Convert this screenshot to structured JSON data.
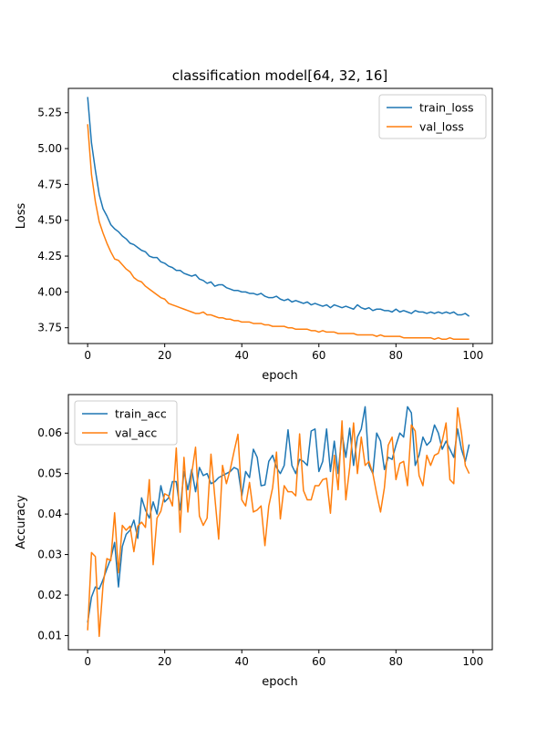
{
  "figure": {},
  "chart_data": [
    {
      "type": "line",
      "title": "classification model[64, 32, 16]",
      "xlabel": "epoch",
      "ylabel": "Loss",
      "xlim": [
        -5,
        105
      ],
      "ylim": [
        3.64,
        5.42
      ],
      "xticks": [
        0,
        20,
        40,
        60,
        80,
        100
      ],
      "yticks": [
        3.75,
        4.0,
        4.25,
        4.5,
        4.75,
        5.0,
        5.25
      ],
      "ytick_labels": [
        "3.75",
        "4.00",
        "4.25",
        "4.50",
        "4.75",
        "5.00",
        "5.25"
      ],
      "legend_position": "top-right",
      "series": [
        {
          "name": "train_loss",
          "color": "#1f77b4",
          "values": [
            5.36,
            5.04,
            4.85,
            4.68,
            4.58,
            4.53,
            4.47,
            4.44,
            4.42,
            4.39,
            4.37,
            4.34,
            4.33,
            4.31,
            4.29,
            4.28,
            4.25,
            4.24,
            4.24,
            4.21,
            4.2,
            4.18,
            4.17,
            4.15,
            4.15,
            4.13,
            4.12,
            4.11,
            4.12,
            4.09,
            4.08,
            4.06,
            4.07,
            4.04,
            4.05,
            4.05,
            4.03,
            4.02,
            4.01,
            4.01,
            4.0,
            4.0,
            3.99,
            3.99,
            3.98,
            3.99,
            3.97,
            3.96,
            3.96,
            3.97,
            3.95,
            3.94,
            3.95,
            3.93,
            3.94,
            3.93,
            3.92,
            3.93,
            3.91,
            3.92,
            3.91,
            3.9,
            3.91,
            3.89,
            3.91,
            3.9,
            3.89,
            3.9,
            3.89,
            3.88,
            3.91,
            3.89,
            3.88,
            3.89,
            3.87,
            3.88,
            3.88,
            3.87,
            3.87,
            3.86,
            3.88,
            3.86,
            3.87,
            3.86,
            3.85,
            3.87,
            3.86,
            3.86,
            3.85,
            3.86,
            3.85,
            3.86,
            3.85,
            3.86,
            3.85,
            3.86,
            3.84,
            3.84,
            3.85,
            3.83
          ]
        },
        {
          "name": "val_loss",
          "color": "#ff7f0e",
          "values": [
            5.17,
            4.82,
            4.63,
            4.49,
            4.41,
            4.34,
            4.28,
            4.23,
            4.22,
            4.19,
            4.16,
            4.14,
            4.1,
            4.08,
            4.07,
            4.04,
            4.02,
            4.0,
            3.98,
            3.96,
            3.95,
            3.92,
            3.91,
            3.9,
            3.89,
            3.88,
            3.87,
            3.86,
            3.85,
            3.85,
            3.86,
            3.84,
            3.84,
            3.83,
            3.82,
            3.82,
            3.81,
            3.81,
            3.8,
            3.8,
            3.79,
            3.79,
            3.79,
            3.78,
            3.78,
            3.78,
            3.77,
            3.77,
            3.76,
            3.76,
            3.76,
            3.76,
            3.75,
            3.75,
            3.74,
            3.74,
            3.74,
            3.74,
            3.73,
            3.73,
            3.72,
            3.73,
            3.72,
            3.72,
            3.72,
            3.71,
            3.71,
            3.71,
            3.71,
            3.71,
            3.7,
            3.7,
            3.7,
            3.7,
            3.7,
            3.69,
            3.7,
            3.69,
            3.69,
            3.69,
            3.69,
            3.69,
            3.68,
            3.68,
            3.68,
            3.68,
            3.68,
            3.68,
            3.68,
            3.68,
            3.67,
            3.68,
            3.67,
            3.67,
            3.68,
            3.67,
            3.67,
            3.67,
            3.67,
            3.67
          ]
        }
      ]
    },
    {
      "type": "line",
      "title": "",
      "xlabel": "epoch",
      "ylabel": "Accuracy",
      "xlim": [
        -5,
        105
      ],
      "ylim": [
        0.0065,
        0.0695
      ],
      "xticks": [
        0,
        20,
        40,
        60,
        80,
        100
      ],
      "yticks": [
        0.01,
        0.02,
        0.03,
        0.04,
        0.05,
        0.06
      ],
      "ytick_labels": [
        "0.01",
        "0.02",
        "0.03",
        "0.04",
        "0.05",
        "0.06"
      ],
      "legend_position": "top-left",
      "series": [
        {
          "name": "train_acc",
          "color": "#1f77b4",
          "values": [
            0.0132,
            0.0195,
            0.022,
            0.0215,
            0.0238,
            0.0265,
            0.029,
            0.033,
            0.022,
            0.032,
            0.035,
            0.036,
            0.0385,
            0.034,
            0.044,
            0.041,
            0.039,
            0.043,
            0.04,
            0.047,
            0.043,
            0.044,
            0.048,
            0.048,
            0.041,
            0.0505,
            0.046,
            0.051,
            0.0455,
            0.0515,
            0.0495,
            0.05,
            0.0475,
            0.048,
            0.049,
            0.0495,
            0.05,
            0.0505,
            0.0515,
            0.051,
            0.0445,
            0.0505,
            0.049,
            0.056,
            0.054,
            0.047,
            0.0472,
            0.053,
            0.0545,
            0.0515,
            0.05,
            0.052,
            0.0608,
            0.052,
            0.05,
            0.0535,
            0.053,
            0.052,
            0.0605,
            0.061,
            0.0505,
            0.053,
            0.061,
            0.0505,
            0.058,
            0.05,
            0.06,
            0.054,
            0.0612,
            0.052,
            0.059,
            0.061,
            0.0665,
            0.052,
            0.05,
            0.06,
            0.058,
            0.051,
            0.054,
            0.0535,
            0.057,
            0.06,
            0.059,
            0.0665,
            0.065,
            0.052,
            0.0545,
            0.059,
            0.057,
            0.058,
            0.062,
            0.06,
            0.056,
            0.058,
            0.056,
            0.054,
            0.061,
            0.056,
            0.053,
            0.0572
          ]
        },
        {
          "name": "val_acc",
          "color": "#ff7f0e",
          "values": [
            0.0113,
            0.0305,
            0.0295,
            0.0098,
            0.0225,
            0.029,
            0.0285,
            0.0403,
            0.0255,
            0.0372,
            0.036,
            0.037,
            0.0307,
            0.037,
            0.038,
            0.0367,
            0.0485,
            0.0275,
            0.039,
            0.0407,
            0.045,
            0.0445,
            0.042,
            0.0563,
            0.0355,
            0.054,
            0.0405,
            0.05,
            0.0565,
            0.0395,
            0.0372,
            0.039,
            0.0548,
            0.0442,
            0.0338,
            0.052,
            0.0475,
            0.051,
            0.0555,
            0.0597,
            0.0435,
            0.042,
            0.0478,
            0.0405,
            0.041,
            0.042,
            0.0322,
            0.042,
            0.0465,
            0.0553,
            0.0388,
            0.047,
            0.0455,
            0.0455,
            0.0445,
            0.0598,
            0.0458,
            0.0435,
            0.0435,
            0.047,
            0.047,
            0.0485,
            0.0488,
            0.0402,
            0.0545,
            0.046,
            0.063,
            0.0435,
            0.0515,
            0.0625,
            0.05,
            0.059,
            0.052,
            0.053,
            0.05,
            0.045,
            0.0405,
            0.0465,
            0.057,
            0.059,
            0.0485,
            0.0525,
            0.053,
            0.047,
            0.062,
            0.0605,
            0.0495,
            0.047,
            0.0545,
            0.052,
            0.0545,
            0.055,
            0.058,
            0.0625,
            0.0485,
            0.0475,
            0.0662,
            0.06,
            0.052,
            0.05
          ]
        }
      ]
    }
  ]
}
